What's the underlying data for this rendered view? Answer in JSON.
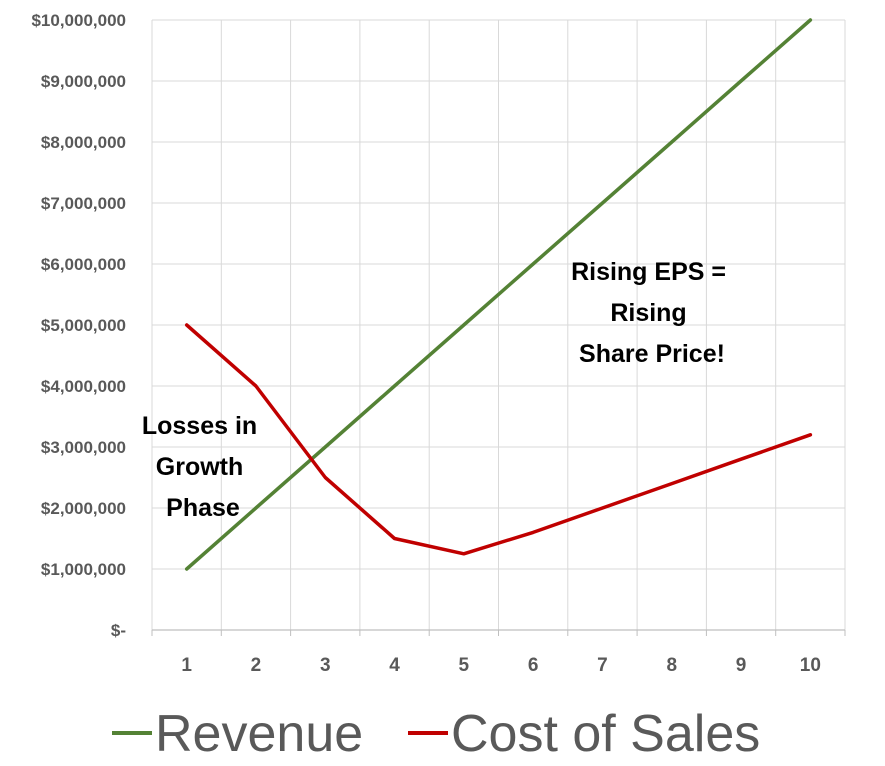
{
  "chart_data": {
    "type": "line",
    "title": "",
    "xlabel": "",
    "ylabel": "",
    "x": [
      1,
      2,
      3,
      4,
      5,
      6,
      7,
      8,
      9,
      10
    ],
    "x_tick_labels": [
      "1",
      "2",
      "3",
      "4",
      "5",
      "6",
      "7",
      "8",
      "9",
      "10"
    ],
    "ylim": [
      0,
      10000000
    ],
    "y_tick_labels": [
      "$-",
      "$1,000,000",
      "$2,000,000",
      "$3,000,000",
      "$4,000,000",
      "$5,000,000",
      "$6,000,000",
      "$7,000,000",
      "$8,000,000",
      "$9,000,000",
      "$10,000,000"
    ],
    "grid": true,
    "legend_position": "bottom",
    "series": [
      {
        "name": "Revenue",
        "color": "#548235",
        "values": [
          1000000,
          2000000,
          3000000,
          4000000,
          5000000,
          6000000,
          7000000,
          8000000,
          9000000,
          10000000
        ]
      },
      {
        "name": "Cost of Sales",
        "color": "#C00000",
        "values": [
          5000000,
          4000000,
          2500000,
          1500000,
          1250000,
          1600000,
          2000000,
          2400000,
          2800000,
          3200000
        ]
      }
    ],
    "annotations": [
      {
        "lines": [
          "Losses in",
          "Growth",
          "Phase"
        ]
      },
      {
        "lines": [
          "Rising EPS =",
          "Rising",
          "Share Price!"
        ]
      }
    ]
  }
}
